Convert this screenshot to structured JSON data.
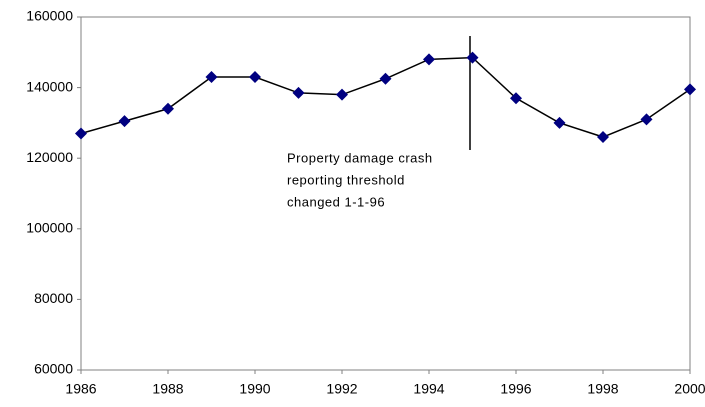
{
  "chart_data": {
    "type": "line",
    "x": [
      1986,
      1987,
      1988,
      1989,
      1990,
      1991,
      1992,
      1993,
      1994,
      1995,
      1996,
      1997,
      1998,
      1999,
      2000
    ],
    "series": [
      {
        "color": "#000080",
        "values": [
          127000,
          130500,
          134000,
          143000,
          143000,
          138500,
          138000,
          142500,
          148000,
          148500,
          137000,
          130000,
          126000,
          131000,
          139500
        ]
      }
    ],
    "xlim": [
      1986,
      2000
    ],
    "xticks": [
      1986,
      1988,
      1990,
      1992,
      1994,
      1996,
      1998,
      2000
    ],
    "ylim": [
      60000,
      160000
    ],
    "yticks": [
      60000,
      80000,
      100000,
      120000,
      140000,
      160000
    ],
    "grid": false,
    "annotation": [
      "Property damage crash",
      "reporting threshold",
      "changed 1-1-96"
    ]
  }
}
